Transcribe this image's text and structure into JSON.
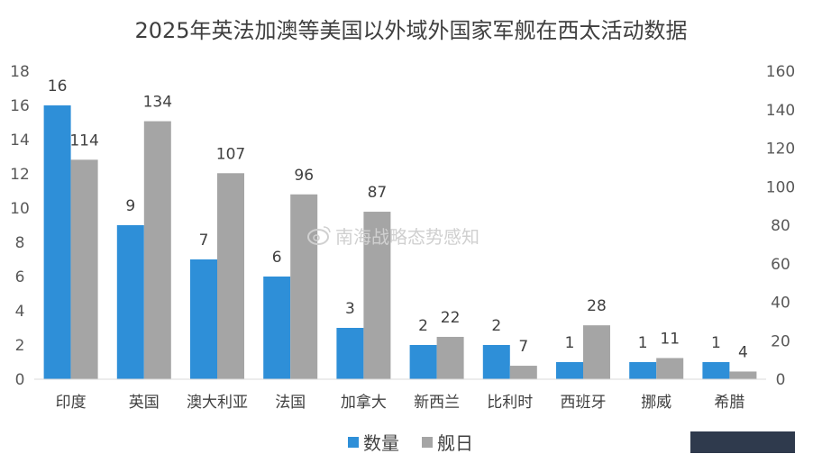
{
  "chart_data": {
    "type": "bar",
    "title": "2025年英法加澳等美国以外域外国家军舰在西太活动数据",
    "categories": [
      "印度",
      "英国",
      "澳大利亚",
      "法国",
      "加拿大",
      "新西兰",
      "比利时",
      "西班牙",
      "挪威",
      "希腊"
    ],
    "series": [
      {
        "name": "数量",
        "axis": "left",
        "color": "#2e8fd8",
        "values": [
          16,
          9,
          7,
          6,
          3,
          2,
          2,
          1,
          1,
          1
        ]
      },
      {
        "name": "舰日",
        "axis": "right",
        "color": "#a5a5a5",
        "values": [
          114,
          134,
          107,
          96,
          87,
          22,
          7,
          28,
          11,
          4
        ]
      }
    ],
    "y_left": {
      "min": 0,
      "max": 18,
      "step": 2,
      "ticks": [
        "0",
        "2",
        "4",
        "6",
        "8",
        "10",
        "12",
        "14",
        "16",
        "18"
      ]
    },
    "y_right": {
      "min": 0,
      "max": 160,
      "step": 20,
      "ticks": [
        "0",
        "20",
        "40",
        "60",
        "80",
        "100",
        "120",
        "140",
        "160"
      ]
    },
    "grid": false,
    "legend_position": "bottom"
  },
  "watermark": {
    "text": "南海战略态势感知",
    "icon": "weibo-icon"
  }
}
